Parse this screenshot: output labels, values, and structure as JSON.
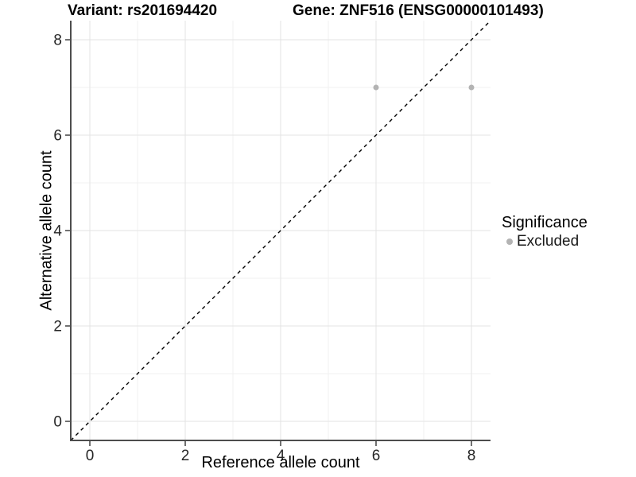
{
  "header": {
    "variant_title": "Variant: rs201694420",
    "gene_title": "Gene: ZNF516 (ENSG00000101493)"
  },
  "chart_data": {
    "type": "scatter",
    "titles": {
      "left": "Variant: rs201694420",
      "right": "Gene: ZNF516 (ENSG00000101493)"
    },
    "xlabel": "Reference allele count",
    "ylabel": "Alternative allele count",
    "xlim": [
      -0.4,
      8.4
    ],
    "ylim": [
      -0.4,
      8.4
    ],
    "x_ticks": [
      0,
      2,
      4,
      6,
      8
    ],
    "y_ticks": [
      0,
      2,
      4,
      6,
      8
    ],
    "x_minor_gridlines": [
      1,
      3,
      5,
      7
    ],
    "y_minor_gridlines": [
      1,
      3,
      5,
      7
    ],
    "grid": "major+minor",
    "reference_line": {
      "type": "identity",
      "style": "dashed",
      "color": "#000000"
    },
    "series": [
      {
        "name": "Excluded",
        "marker": "circle",
        "color": "#b3b3b3",
        "points": [
          [
            6,
            7
          ],
          [
            8,
            7
          ]
        ]
      }
    ],
    "legend": {
      "title": "Significance",
      "position": "right",
      "items": [
        {
          "label": "Excluded",
          "color": "#b3b3b3"
        }
      ]
    },
    "colors": {
      "axis_line": "#4d4d4d",
      "tick_label": "#262626",
      "grid_major": "#e3e3e3",
      "grid_minor": "#f1f1f1",
      "background": "#ffffff"
    }
  }
}
